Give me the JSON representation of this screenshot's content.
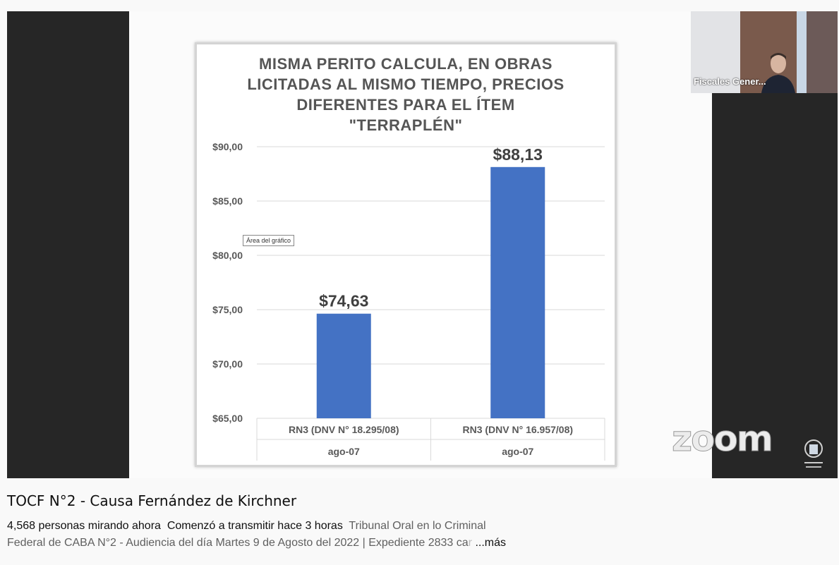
{
  "video": {
    "thumbnail_label": "Fiscales Gener...",
    "zoom_logo": "zoom",
    "tooltip": "Área del gráfico"
  },
  "chart_data": {
    "type": "bar",
    "title": "MISMA PERITO CALCULA, EN OBRAS LICITADAS AL MISMO TIEMPO, PRECIOS DIFERENTES PARA EL ÍTEM \"TERRAPLÉN\"",
    "categories": [
      {
        "label": "RN3 (DNV N° 18.295/08)",
        "sublabel": "ago-07"
      },
      {
        "label": "RN3 (DNV N° 16.957/08)",
        "sublabel": "ago-07"
      }
    ],
    "values": [
      74.63,
      88.13
    ],
    "value_labels": [
      "$74,63",
      "$88,13"
    ],
    "ylim": [
      65,
      90
    ],
    "yticks": [
      65,
      70,
      75,
      80,
      85,
      90
    ],
    "ytick_labels": [
      "$65,00",
      "$70,00",
      "$75,00",
      "$80,00",
      "$85,00",
      "$90,00"
    ],
    "bar_color": "#4472c4",
    "grid": true
  },
  "info": {
    "title": "TOCF N°2 - Causa Fernández de Kirchner",
    "viewers": "4,568 personas mirando ahora",
    "started": "Comenzó a transmitir hace 3 horas",
    "desc_line1": "Tribunal Oral en lo Criminal",
    "desc_line2": "Federal de CABA N°2 - Audiencia del día Martes 9 de Agosto del 2022 | Expediente 2833 ca",
    "desc_fade": "r",
    "more": "...más"
  }
}
